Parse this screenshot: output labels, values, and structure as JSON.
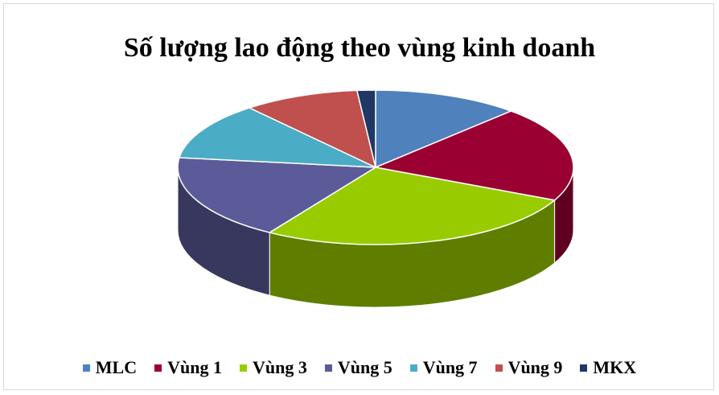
{
  "chart_data": {
    "type": "pie",
    "title": "Số lượng lao động theo vùng kinh doanh",
    "legend_position": "bottom",
    "is_3d": true,
    "slices": [
      {
        "label": "MLC",
        "value": 12,
        "color": "#4f81bd"
      },
      {
        "label": "Vùng 1",
        "value": 20,
        "color": "#9b0033"
      },
      {
        "label": "Vùng 3",
        "value": 27,
        "color": "#99cc00"
      },
      {
        "label": "Vùng 5",
        "value": 18,
        "color": "#5b5b99"
      },
      {
        "label": "Vùng 7",
        "value": 12,
        "color": "#4bacc6"
      },
      {
        "label": "Vùng 9",
        "value": 9.5,
        "color": "#c0504d"
      },
      {
        "label": "MKX",
        "value": 1.5,
        "color": "#1f3864"
      }
    ]
  }
}
